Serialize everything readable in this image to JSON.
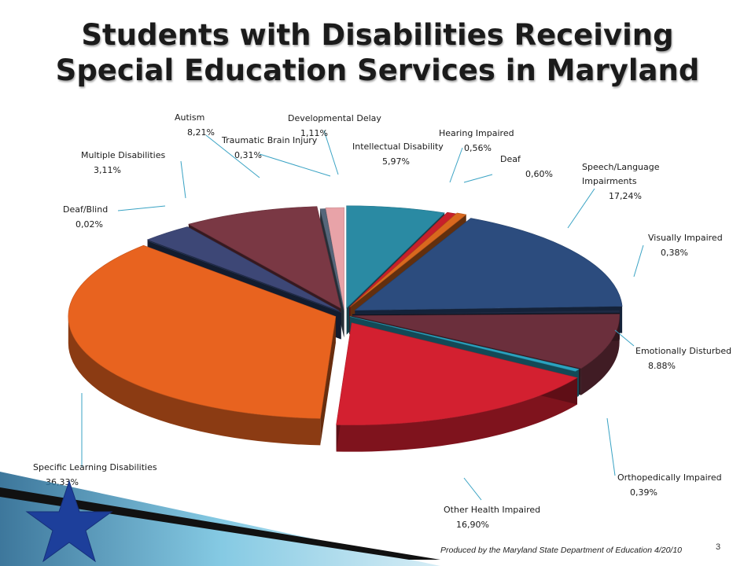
{
  "title_line1": "Students with Disabilities Receiving",
  "title_line2": "Special Education Services in Maryland",
  "footer": "Produced by the Maryland State Department of Education 4/20/10",
  "page_number": "3",
  "chart_data": {
    "type": "pie",
    "style": "3d-exploded",
    "slices": [
      {
        "label": "Intellectual Disability",
        "value_text": "5,97%",
        "value": 5.97,
        "color": "#2a8aa3"
      },
      {
        "label": "Hearing Impaired",
        "value_text": "0,56%",
        "value": 0.56,
        "color": "#c7202b"
      },
      {
        "label": "Deaf",
        "value_text": "0,60%",
        "value": 0.6,
        "color": "#d9681e"
      },
      {
        "label": "Speech/Language Impairments",
        "value_text": "17,24%",
        "value": 17.24,
        "color": "#2c4c7e"
      },
      {
        "label": "Visually Impaired",
        "value_text": "0,38%",
        "value": 0.38,
        "color": "#1e2a44"
      },
      {
        "label": "Emotionally Disturbed",
        "value_text": "8.88%",
        "value": 8.88,
        "color": "#6b2f3c"
      },
      {
        "label": "Orthopedically Impaired",
        "value_text": "0,39%",
        "value": 0.39,
        "color": "#2ba3c0"
      },
      {
        "label": "Other Health Impaired",
        "value_text": "16,90%",
        "value": 16.9,
        "color": "#d32030"
      },
      {
        "label": "Specific Learning Disabilities",
        "value_text": "36,33%",
        "value": 36.33,
        "color": "#e8631f"
      },
      {
        "label": "Deaf/Blind",
        "value_text": "0,02%",
        "value": 0.02,
        "color": "#2a3f66"
      },
      {
        "label": "Multiple Disabilities",
        "value_text": "3,11%",
        "value": 3.11,
        "color": "#3d4776"
      },
      {
        "label": "Autism",
        "value_text": "8,21%",
        "value": 8.21,
        "color": "#7a3844"
      },
      {
        "label": "Traumatic Brain Injury",
        "value_text": "0,31%",
        "value": 0.31,
        "color": "#56667a"
      },
      {
        "label": "Developmental Delay",
        "value_text": "1,11%",
        "value": 1.11,
        "color": "#e8a3a8"
      }
    ]
  }
}
